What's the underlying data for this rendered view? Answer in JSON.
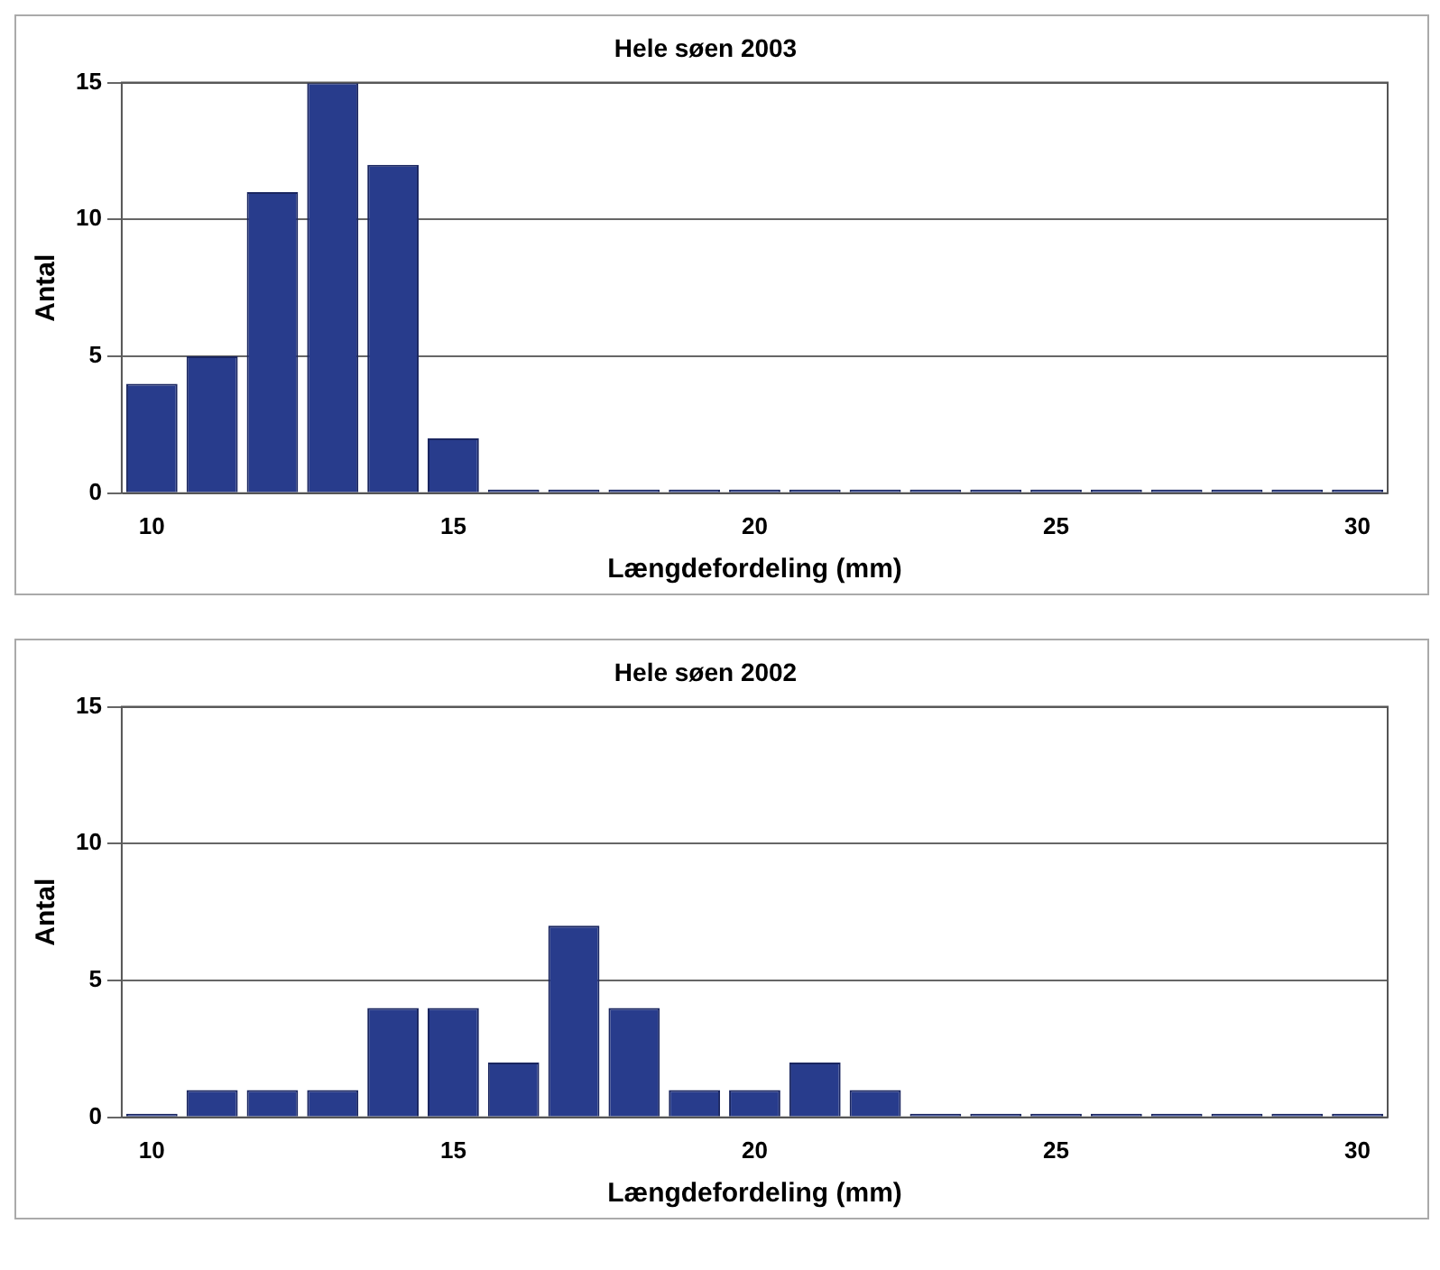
{
  "chart_data": [
    {
      "type": "bar",
      "title": "Hele søen 2003",
      "xlabel": "Længdefordeling (mm)",
      "ylabel": "Antal",
      "categories": [
        "10",
        null,
        null,
        null,
        null,
        "15",
        null,
        null,
        null,
        null,
        "20",
        null,
        null,
        null,
        null,
        "25",
        null,
        null,
        null,
        null,
        "30"
      ],
      "values": [
        4,
        5,
        11,
        15,
        12,
        2,
        0,
        0,
        0,
        0,
        0,
        0,
        0,
        0,
        0,
        0,
        0,
        0,
        0,
        0,
        0
      ],
      "color": "#283c8c",
      "ylim": [
        0,
        15
      ],
      "yticks": [
        0,
        5,
        10,
        15
      ],
      "grid": "y",
      "legend": false
    },
    {
      "type": "bar",
      "title": "Hele søen 2002",
      "xlabel": "Længdefordeling (mm)",
      "ylabel": "Antal",
      "categories": [
        "10",
        null,
        null,
        null,
        null,
        "15",
        null,
        null,
        null,
        null,
        "20",
        null,
        null,
        null,
        null,
        "25",
        null,
        null,
        null,
        null,
        "30"
      ],
      "values": [
        0,
        1,
        1,
        1,
        4,
        4,
        2,
        7,
        4,
        1,
        1,
        2,
        1,
        0,
        0,
        0,
        0,
        0,
        0,
        0,
        0
      ],
      "color": "#283c8c",
      "ylim": [
        0,
        15
      ],
      "yticks": [
        0,
        5,
        10,
        15
      ],
      "grid": "y",
      "legend": false
    }
  ]
}
